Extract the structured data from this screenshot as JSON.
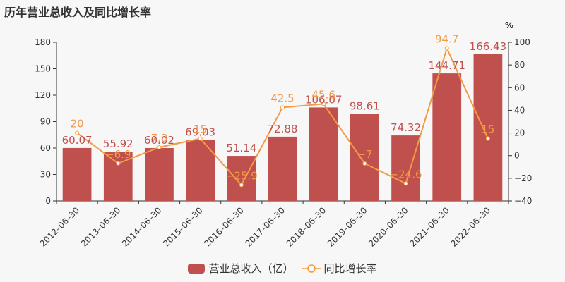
{
  "title": "历年营业总收入及同比增长率",
  "colors": {
    "bar": "#c0504d",
    "line": "#f39a45",
    "axis": "#333333",
    "bg": "#f7f7f7"
  },
  "legend": {
    "bar_label": "营业总收入（亿）",
    "line_label": "同比增长率"
  },
  "right_axis_unit": "%",
  "chart_data": {
    "type": "bar",
    "title": "历年营业总收入及同比增长率",
    "categories": [
      "2012-06-30",
      "2013-06-30",
      "2014-06-30",
      "2015-06-30",
      "2016-06-30",
      "2017-06-30",
      "2018-06-30",
      "2019-06-30",
      "2020-06-30",
      "2021-06-30",
      "2022-06-30"
    ],
    "series": [
      {
        "name": "营业总收入（亿）",
        "type": "bar",
        "axis": "left",
        "values": [
          60.07,
          55.92,
          60.02,
          69.03,
          51.14,
          72.88,
          106.07,
          98.61,
          74.32,
          144.71,
          166.43
        ]
      },
      {
        "name": "同比增长率",
        "type": "line",
        "axis": "right",
        "values": [
          20,
          -6.9,
          7.3,
          15,
          -25.9,
          42.5,
          45.6,
          -7,
          -24.6,
          94.7,
          15
        ]
      }
    ],
    "left_axis": {
      "ylim": [
        0,
        180
      ],
      "ticks": [
        0,
        30,
        60,
        90,
        120,
        150,
        180
      ]
    },
    "right_axis": {
      "label": "%",
      "ylim": [
        -40,
        100
      ],
      "ticks": [
        -40,
        -20,
        0,
        20,
        40,
        60,
        80,
        100
      ]
    },
    "legend_position": "bottom",
    "grid": false
  }
}
